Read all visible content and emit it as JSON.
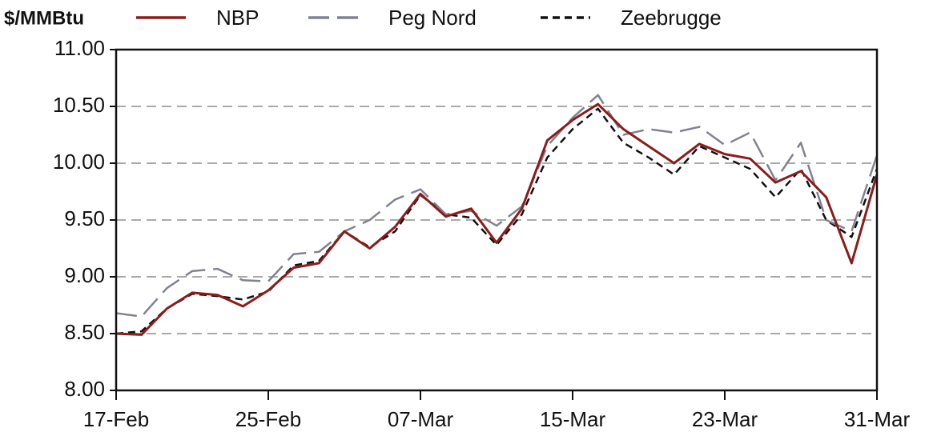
{
  "chart_data": {
    "type": "line",
    "ylabel": "$/MMBtu",
    "categories": [
      "17-Feb",
      null,
      null,
      null,
      null,
      null,
      "25-Feb",
      null,
      null,
      null,
      null,
      null,
      "07-Mar",
      null,
      null,
      null,
      null,
      null,
      "15-Mar",
      null,
      null,
      null,
      null,
      null,
      "23-Mar",
      null,
      null,
      null,
      null,
      null,
      "31-Mar"
    ],
    "series": [
      {
        "name": "NBP",
        "color": "#8b1c1c",
        "style": "solid",
        "values": [
          8.5,
          8.49,
          8.72,
          8.86,
          8.84,
          8.74,
          8.88,
          9.08,
          9.12,
          9.4,
          9.25,
          9.44,
          9.73,
          9.53,
          9.6,
          9.3,
          9.6,
          10.2,
          10.38,
          10.52,
          10.3,
          10.15,
          10.0,
          10.17,
          10.08,
          10.04,
          9.83,
          9.93,
          9.7,
          9.12,
          9.9
        ]
      },
      {
        "name": "Peg Nord",
        "color": "#80838f",
        "style": "long-dash",
        "values": [
          8.68,
          8.65,
          8.9,
          9.05,
          9.07,
          8.97,
          8.96,
          9.2,
          9.22,
          9.4,
          9.5,
          9.68,
          9.77,
          9.55,
          9.58,
          9.45,
          9.62,
          10.15,
          10.4,
          10.6,
          10.25,
          10.3,
          10.27,
          10.32,
          10.16,
          10.27,
          9.85,
          10.18,
          9.5,
          9.4,
          10.07
        ]
      },
      {
        "name": "Zeebrugge",
        "color": "#111111",
        "style": "short-dash",
        "values": [
          8.5,
          8.52,
          8.72,
          8.85,
          8.83,
          8.8,
          8.87,
          9.1,
          9.14,
          9.4,
          9.26,
          9.4,
          9.72,
          9.55,
          9.52,
          9.28,
          9.55,
          10.05,
          10.3,
          10.48,
          10.18,
          10.05,
          9.9,
          10.15,
          10.05,
          9.95,
          9.7,
          9.95,
          9.5,
          9.35,
          9.95
        ]
      }
    ],
    "ylim": [
      8,
      11
    ],
    "yticks": [
      {
        "value": 8,
        "label": "8.00"
      },
      {
        "value": 8.5,
        "label": "8.50"
      },
      {
        "value": 9,
        "label": "9.00"
      },
      {
        "value": 9.5,
        "label": "9.50"
      },
      {
        "value": 10,
        "label": "10.00"
      },
      {
        "value": 10.5,
        "label": "10.50"
      },
      {
        "value": 11,
        "label": "11.00"
      }
    ],
    "grid": true
  }
}
